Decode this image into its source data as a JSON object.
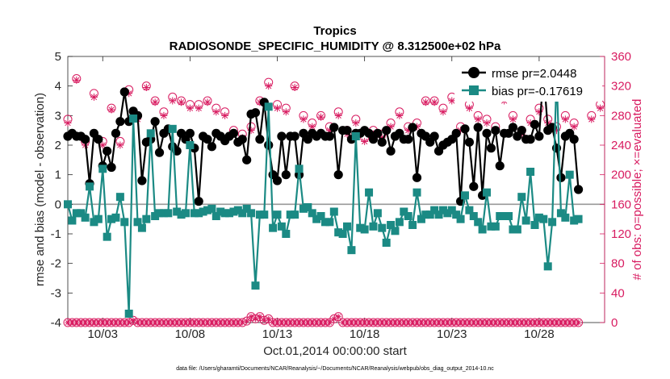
{
  "chart_data": {
    "type": "line",
    "title": "Tropics",
    "subtitle": "RADIOSONDE_SPECIFIC_HUMIDITY @ 8.312500e+02 hPa",
    "xlabel": "Oct.01,2014 00:00:00 start",
    "ylabel": "rmse and bias (model - observation)",
    "ylabel_right": "# of obs: o=possible; ×=evaluated",
    "footnote": "data file: /Users/gharamti/Documents/NCAR/Reanalysis/~/Documents/NCAR/Reanalysis/webpub/obs_diag_output_2014-10.nc",
    "xlim": [
      1,
      31.75
    ],
    "ylim": [
      -4,
      5
    ],
    "ylim_right": [
      0,
      360
    ],
    "x_ticks": [
      3,
      8,
      13,
      18,
      23,
      28
    ],
    "x_tick_labels": [
      "10/03",
      "10/08",
      "10/13",
      "10/18",
      "10/23",
      "10/28"
    ],
    "y_ticks": [
      -4,
      -3,
      -2,
      -1,
      0,
      1,
      2,
      3,
      4,
      5
    ],
    "y_ticks_right": [
      0,
      40,
      80,
      120,
      160,
      200,
      240,
      280,
      320,
      360
    ],
    "legend_position": "top-right",
    "x_start": 1.0,
    "x_step": 0.25,
    "series": [
      {
        "name": "rmse pr=2.0448",
        "color": "#000000",
        "marker": "filled-circle",
        "values": [
          2.3,
          2.4,
          2.3,
          2.3,
          2.2,
          0.7,
          2.4,
          2.2,
          1.3,
          1.8,
          1.25,
          2.4,
          2.8,
          3.8,
          2.8,
          3.15,
          3.0,
          0.8,
          2.1,
          2.2,
          2.8,
          1.75,
          2.4,
          2.55,
          1.95,
          1.8,
          2.4,
          2.2,
          2.4,
          1.9,
          0.1,
          2.3,
          2.2,
          1.95,
          2.4,
          2.3,
          2.15,
          2.3,
          2.4,
          2.1,
          2.2,
          1.5,
          3.05,
          3.1,
          2.2,
          3.45,
          2.0,
          1.0,
          0.8,
          2.3,
          1.0,
          2.3,
          2.3,
          1.0,
          2.4,
          2.2,
          2.4,
          2.3,
          2.4,
          2.3,
          2.3,
          2.6,
          1.0,
          2.5,
          2.5,
          2.2,
          2.4,
          2.4,
          2.5,
          2.4,
          2.2,
          2.4,
          2.1,
          2.5,
          1.8,
          2.3,
          2.4,
          2.2,
          2.2,
          2.6,
          0.9,
          2.4,
          2.3,
          2.1,
          2.3,
          1.8,
          2.0,
          2.1,
          2.2,
          2.4,
          0.1,
          2.55,
          2.1,
          0.6,
          2.6,
          0.3,
          2.4,
          1.9,
          2.5,
          1.3,
          2.4,
          2.4,
          2.6,
          2.3,
          2.5,
          2.2,
          2.2,
          2.7,
          2.3,
          4.5,
          2.5,
          2.6,
          1.9,
          0.9,
          2.3,
          2.4,
          2.2,
          0.5
        ]
      },
      {
        "name": "bias pr=-0.17619",
        "color": "#1b8a84",
        "marker": "filled-square",
        "values": [
          0.0,
          -0.55,
          -0.3,
          -0.3,
          -0.45,
          0.6,
          -0.6,
          -0.5,
          1.2,
          -1.1,
          -0.5,
          -0.45,
          0.25,
          -0.6,
          -3.7,
          2.9,
          -0.6,
          -0.8,
          -0.5,
          2.4,
          -0.4,
          -0.3,
          -0.3,
          -0.3,
          2.55,
          -0.25,
          -0.35,
          -0.3,
          2.0,
          -0.3,
          -0.3,
          -0.25,
          -0.2,
          -0.15,
          -0.4,
          -0.25,
          -0.3,
          -0.3,
          -0.25,
          -0.2,
          -0.3,
          -0.15,
          -0.3,
          -2.75,
          -0.35,
          -0.35,
          3.3,
          -0.8,
          -0.35,
          -0.75,
          -1.0,
          -0.35,
          -0.35,
          1.2,
          -0.15,
          -0.1,
          -0.3,
          -0.5,
          -0.4,
          -0.6,
          -0.6,
          -0.25,
          -0.95,
          -1.0,
          -0.75,
          -1.55,
          2.3,
          -0.8,
          -0.85,
          0.4,
          -0.75,
          -0.3,
          -0.8,
          -1.3,
          -0.7,
          -0.9,
          -0.6,
          -0.25,
          -0.4,
          -0.7,
          0.4,
          -0.5,
          -0.35,
          -0.35,
          -0.2,
          -0.35,
          -0.2,
          -0.3,
          -0.2,
          -0.35,
          -0.5,
          0.3,
          -0.2,
          -0.4,
          -0.6,
          -0.85,
          0.4,
          -0.75,
          -0.75,
          -0.4,
          -0.4,
          -0.4,
          -0.85,
          -0.85,
          0.25,
          -0.55,
          1.1,
          -0.7,
          -0.45,
          -0.5,
          -2.1,
          -0.6,
          4.4,
          -0.3,
          -0.45,
          1.0,
          -0.55,
          -0.5
        ]
      },
      {
        "name": "obs possible",
        "color": "#d81b60",
        "marker": "open-circle",
        "axis": "right",
        "values": [
          0,
          0,
          0,
          0,
          0,
          0,
          0,
          0,
          0,
          0,
          0,
          0,
          0,
          0,
          0,
          3,
          0,
          0,
          0,
          0,
          0,
          0,
          0,
          0,
          0,
          0,
          0,
          0,
          0,
          0,
          0,
          0,
          0,
          0,
          0,
          0,
          0,
          0,
          0,
          0,
          0,
          2,
          8,
          5,
          8,
          3,
          5,
          0,
          0,
          0,
          0,
          0,
          0,
          0,
          0,
          0,
          0,
          0,
          0,
          0,
          0,
          5,
          8,
          0,
          0,
          0,
          0,
          0,
          0,
          0,
          0,
          0,
          0,
          0,
          0,
          0,
          0,
          0,
          0,
          0,
          0,
          0,
          0,
          0,
          0,
          0,
          0,
          0,
          0,
          0,
          0,
          0,
          0,
          0,
          0,
          0,
          0,
          0,
          0,
          0,
          0,
          0,
          0,
          0,
          0,
          0,
          0,
          0,
          0,
          0,
          0,
          0,
          0,
          0,
          0,
          0,
          0,
          0
        ]
      },
      {
        "name": "obs evaluated",
        "color": "#d81b60",
        "marker": "x",
        "axis": "right",
        "values": [
          0,
          0,
          0,
          0,
          0,
          0,
          0,
          0,
          0,
          0,
          0,
          0,
          0,
          0,
          0,
          3,
          0,
          0,
          0,
          0,
          0,
          0,
          0,
          0,
          0,
          0,
          0,
          0,
          0,
          0,
          0,
          0,
          0,
          0,
          0,
          0,
          0,
          0,
          0,
          0,
          0,
          2,
          8,
          5,
          8,
          3,
          5,
          0,
          0,
          0,
          0,
          0,
          0,
          0,
          0,
          0,
          0,
          0,
          0,
          0,
          0,
          5,
          8,
          0,
          0,
          0,
          0,
          0,
          0,
          0,
          0,
          0,
          0,
          0,
          0,
          0,
          0,
          0,
          0,
          0,
          0,
          0,
          0,
          0,
          0,
          0,
          0,
          0,
          0,
          0,
          0,
          0,
          0,
          0,
          0,
          0,
          0,
          0,
          0,
          0,
          0,
          0,
          0,
          0,
          0,
          0,
          0,
          0,
          0,
          0,
          0,
          0,
          0,
          0,
          0,
          0,
          0,
          0
        ]
      }
    ],
    "upper_obs": {
      "note": "per-cycle observation counts at the 00Z/12Z soundings (right axis)",
      "x": [
        1.0,
        1.5,
        2.0,
        2.5,
        3.0,
        3.5,
        4.0,
        4.5,
        5.0,
        5.5,
        6.0,
        6.5,
        7.0,
        7.5,
        8.0,
        8.5,
        9.0,
        9.5,
        10.0,
        10.5,
        11.0,
        11.5,
        12.0,
        12.5,
        13.0,
        13.5,
        14.0,
        14.5,
        15.0,
        15.5,
        16.0,
        16.5,
        17.0,
        17.5,
        18.0,
        18.5,
        19.0,
        19.5,
        20.0,
        20.5,
        21.0,
        21.5,
        22.0,
        22.5,
        23.0,
        23.5,
        24.0,
        24.5,
        25.0,
        25.5,
        26.0,
        26.5,
        27.0,
        27.5,
        28.0,
        28.5,
        29.0,
        29.5,
        30.0,
        30.5,
        31.0,
        31.5
      ],
      "possible": [
        275,
        330,
        245,
        310,
        245,
        290,
        245,
        315,
        280,
        320,
        300,
        285,
        305,
        300,
        295,
        295,
        300,
        290,
        285,
        260,
        255,
        265,
        300,
        325,
        295,
        290,
        320,
        280,
        270,
        280,
        265,
        285,
        260,
        275,
        250,
        260,
        255,
        270,
        285,
        265,
        270,
        300,
        300,
        290,
        305,
        265,
        295,
        280,
        275,
        265,
        305,
        280,
        260,
        275,
        290,
        275,
        265,
        280,
        270,
        335,
        280,
        295
      ],
      "evaluated": [
        270,
        328,
        240,
        305,
        240,
        288,
        240,
        310,
        275,
        318,
        298,
        280,
        300,
        298,
        290,
        290,
        298,
        285,
        280,
        255,
        250,
        260,
        298,
        320,
        290,
        285,
        318,
        275,
        265,
        278,
        260,
        280,
        255,
        270,
        245,
        255,
        250,
        265,
        280,
        260,
        265,
        298,
        298,
        285,
        300,
        260,
        290,
        275,
        270,
        260,
        300,
        275,
        255,
        270,
        285,
        270,
        260,
        275,
        265,
        330,
        275,
        290
      ]
    }
  }
}
